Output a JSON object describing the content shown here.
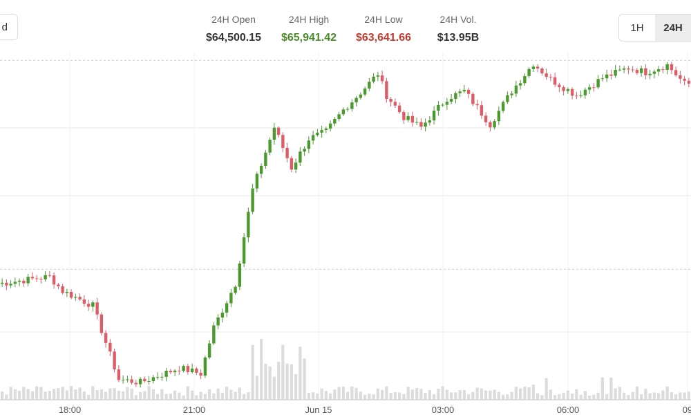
{
  "controls": {
    "partial_button_label": "d",
    "timeframes": [
      {
        "label": "1H",
        "active": false
      },
      {
        "label": "24H",
        "active": true
      }
    ]
  },
  "stats": [
    {
      "label": "24H Open",
      "value": "$64,500.15",
      "color": "#333333"
    },
    {
      "label": "24H High",
      "value": "$65,941.42",
      "color": "#4a8a2a"
    },
    {
      "label": "24H Low",
      "value": "$63,641.66",
      "color": "#c0392b"
    },
    {
      "label": "24H Vol.",
      "value": "$13.95B",
      "color": "#333333"
    }
  ],
  "colors": {
    "up": "#4a9a2e",
    "down": "#de5c66",
    "volume": "#dcdcdc",
    "grid": "#e8e8e8",
    "reference_line": "#cccccc"
  },
  "chart_data": {
    "type": "candlestick",
    "x_tick_labels": [
      "18:00",
      "21:00",
      "Jun 15",
      "03:00",
      "06:00",
      "09"
    ],
    "grid": true,
    "y_scale_labels_visible": false,
    "ylim": [
      63600,
      66000
    ],
    "reference_levels": [
      65941.42,
      64500.15
    ],
    "candle_count": 160,
    "key_points": [
      {
        "index": 0,
        "price": 64400
      },
      {
        "index": 12,
        "price": 64450
      },
      {
        "index": 15,
        "price": 64350
      },
      {
        "index": 22,
        "price": 64250
      },
      {
        "index": 28,
        "price": 63740
      },
      {
        "index": 33,
        "price": 63720
      },
      {
        "index": 42,
        "price": 63820
      },
      {
        "index": 47,
        "price": 63780
      },
      {
        "index": 50,
        "price": 64100
      },
      {
        "index": 55,
        "price": 64400
      },
      {
        "index": 59,
        "price": 65050
      },
      {
        "index": 64,
        "price": 65480
      },
      {
        "index": 68,
        "price": 65200
      },
      {
        "index": 72,
        "price": 65400
      },
      {
        "index": 76,
        "price": 65450
      },
      {
        "index": 80,
        "price": 65600
      },
      {
        "index": 84,
        "price": 65720
      },
      {
        "index": 88,
        "price": 65850
      },
      {
        "index": 90,
        "price": 65700
      },
      {
        "index": 94,
        "price": 65550
      },
      {
        "index": 98,
        "price": 65480
      },
      {
        "index": 104,
        "price": 65680
      },
      {
        "index": 108,
        "price": 65730
      },
      {
        "index": 114,
        "price": 65500
      },
      {
        "index": 119,
        "price": 65730
      },
      {
        "index": 124,
        "price": 65920
      },
      {
        "index": 128,
        "price": 65810
      },
      {
        "index": 134,
        "price": 65700
      },
      {
        "index": 140,
        "price": 65820
      },
      {
        "index": 146,
        "price": 65890
      },
      {
        "index": 150,
        "price": 65860
      },
      {
        "index": 155,
        "price": 65910
      },
      {
        "index": 159,
        "price": 65780
      }
    ],
    "volume_peak_index": 60
  }
}
